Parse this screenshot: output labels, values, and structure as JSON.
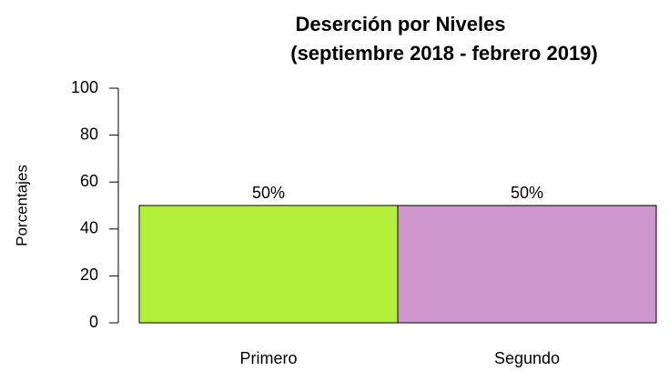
{
  "chart_data": {
    "type": "bar",
    "title": "Deserción por Niveles",
    "subtitle": "(septiembre 2018 - febrero 2019)",
    "y_label": "Porcentajes",
    "categories": [
      "Primero",
      "Segundo"
    ],
    "values": [
      50,
      50
    ],
    "value_labels": [
      "50%",
      "50%"
    ],
    "colors": [
      "#b3ef3a",
      "#cd96cd"
    ],
    "ylim": [
      0,
      100
    ],
    "yticks": [
      0,
      20,
      40,
      60,
      80,
      100
    ],
    "grid": false
  }
}
